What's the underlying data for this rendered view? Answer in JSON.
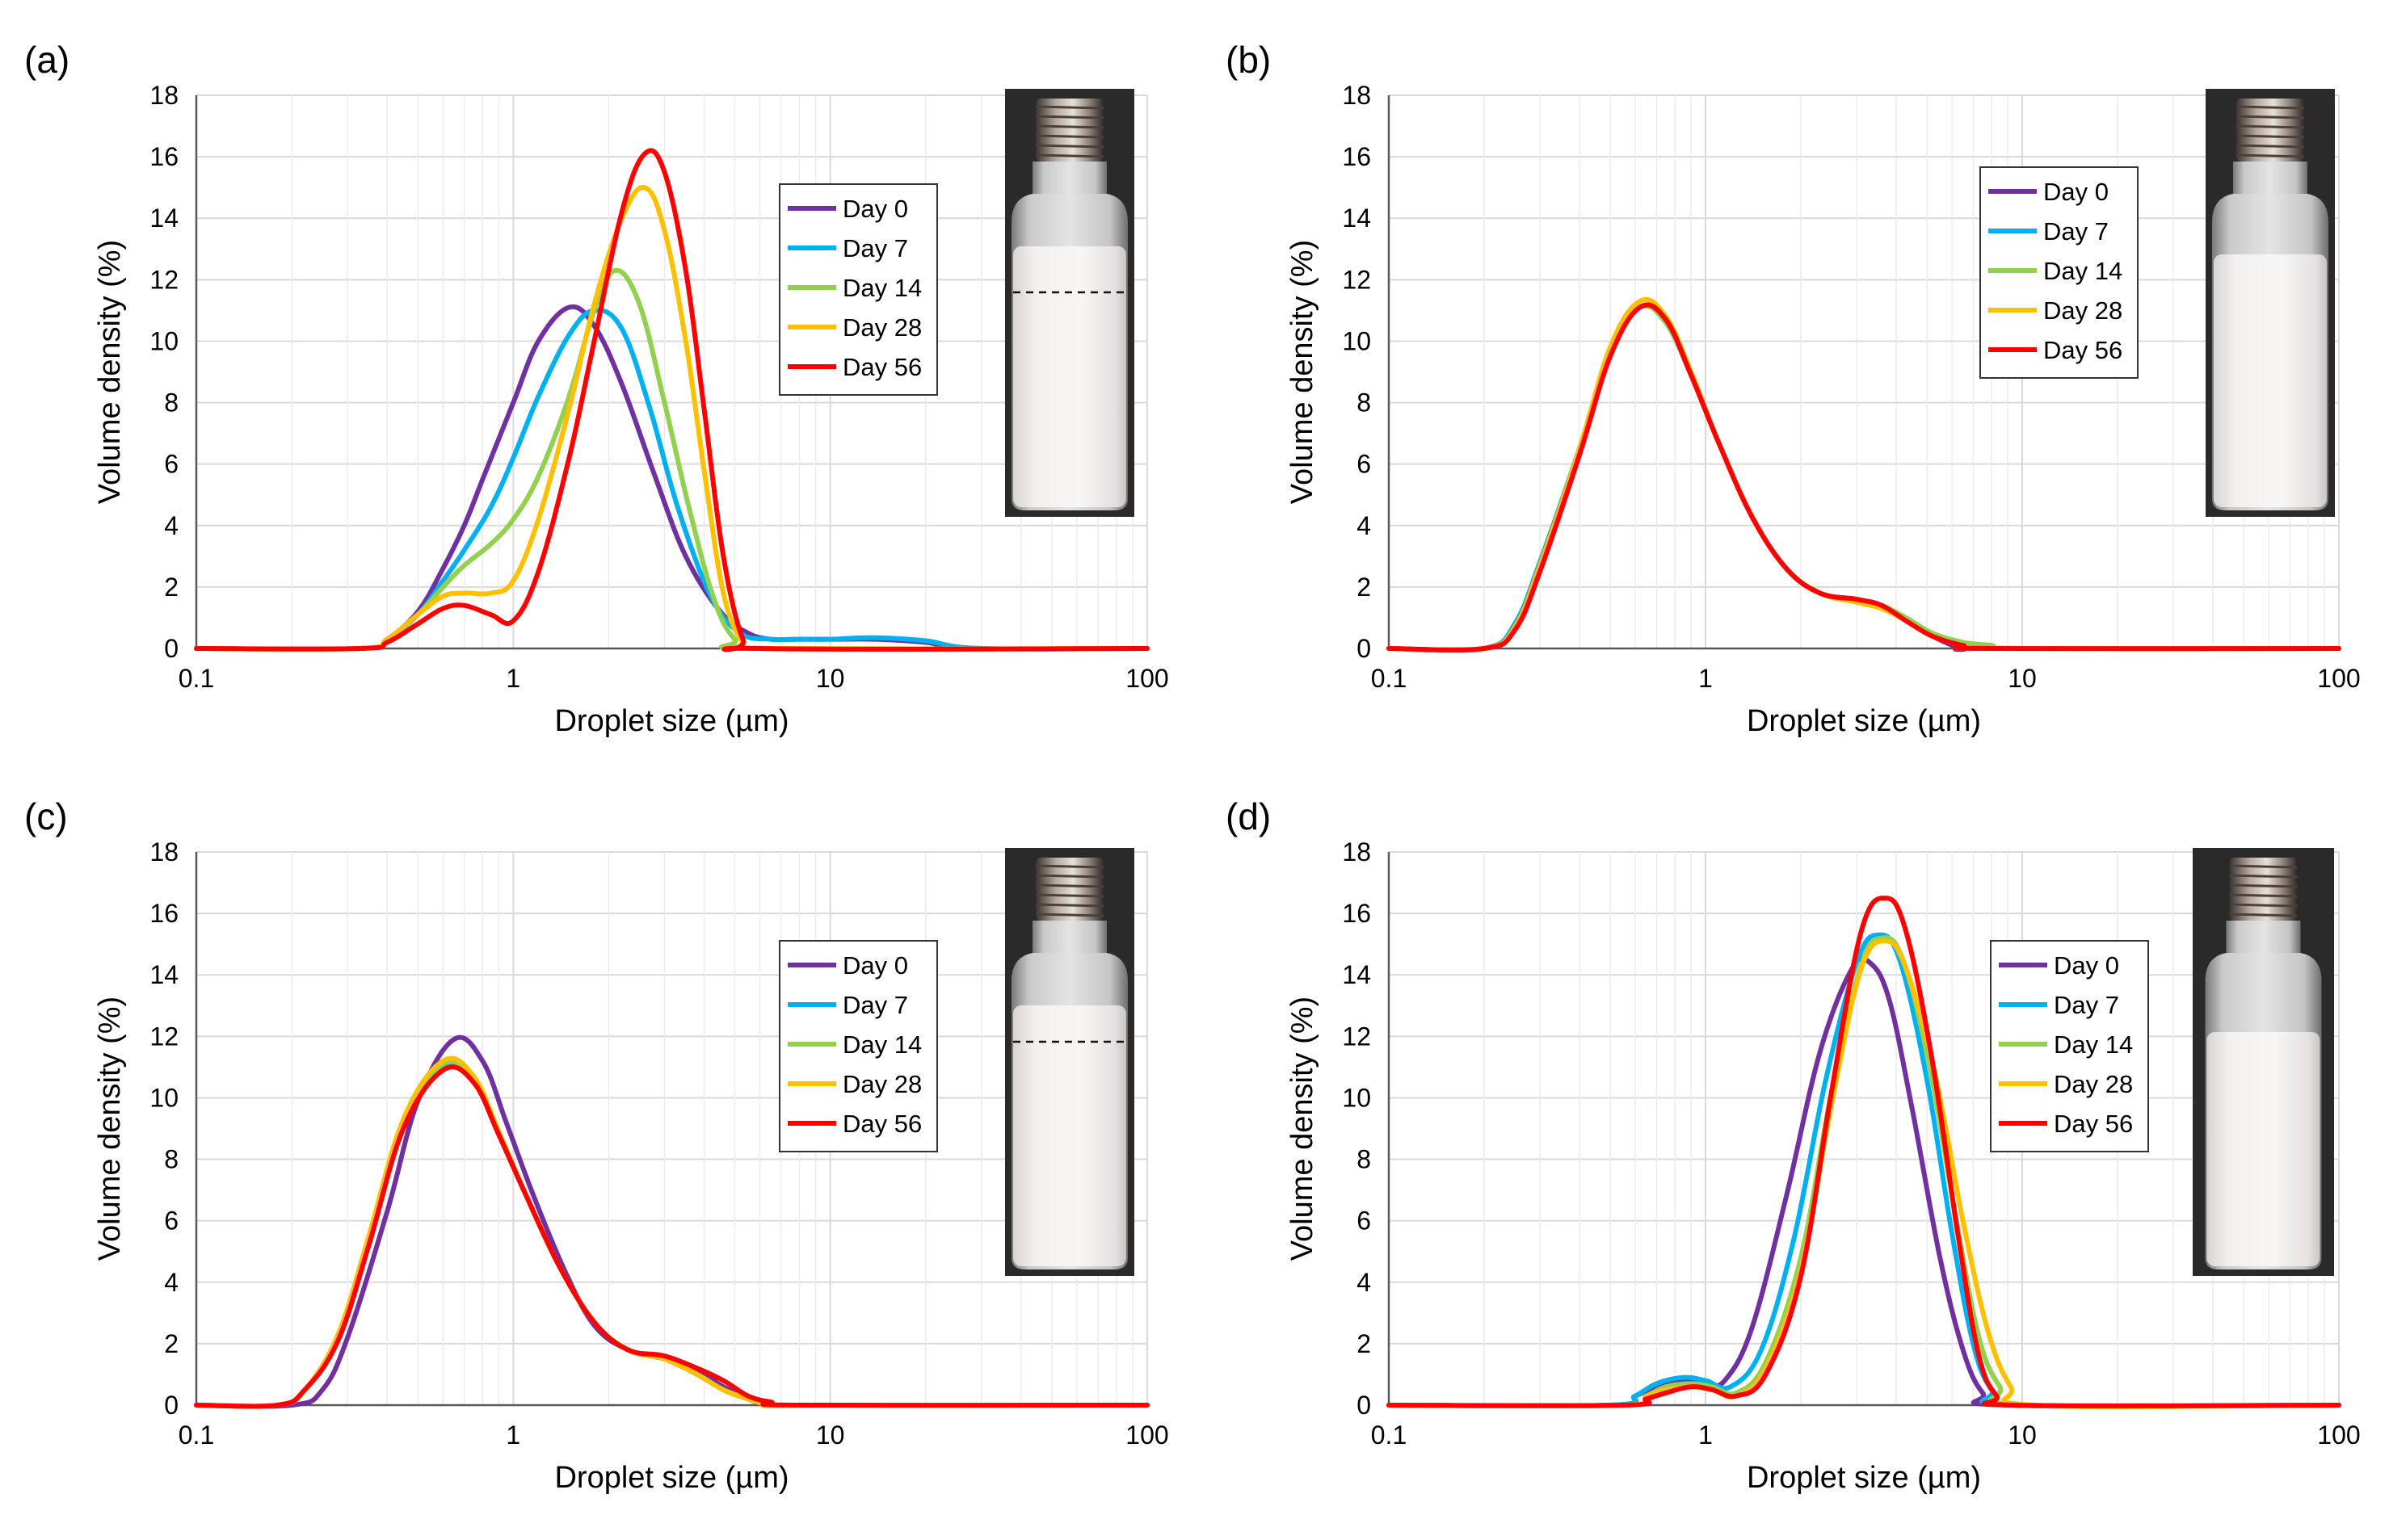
{
  "figure": {
    "x_axis_label": "Droplet size (µm)",
    "y_axis_label": "Volume density (%)",
    "legend": [
      "Day 0",
      "Day 7",
      "Day 14",
      "Day 28",
      "Day 56"
    ],
    "colors": {
      "Day 0": "#7030A0",
      "Day 7": "#00B0F0",
      "Day 14": "#92D050",
      "Day 28": "#FFC000",
      "Day 56": "#FF0000",
      "grid": "#d9d9d9"
    }
  },
  "chart_data": [
    {
      "panel": "(a)",
      "type": "line",
      "xscale": "log",
      "xlim": [
        0.1,
        100
      ],
      "ylim": [
        0,
        18
      ],
      "xticks": [
        "0.1",
        "1",
        "10",
        "100"
      ],
      "yticks": [
        "0",
        "2",
        "4",
        "6",
        "8",
        "10",
        "12",
        "14",
        "16",
        "18"
      ],
      "xlabel": "Droplet size (µm)",
      "ylabel": "Volume density (%)",
      "legend_position": "upper-center-right",
      "inset": {
        "type": "vial photo",
        "dashed_line": true
      },
      "series": [
        {
          "name": "Day 0",
          "x": [
            0.1,
            0.33,
            0.4,
            0.5,
            0.6,
            0.7,
            0.8,
            1.0,
            1.2,
            1.5,
            1.8,
            2.2,
            2.8,
            3.5,
            4.5,
            5.5,
            6.5,
            8,
            10,
            14,
            20,
            28,
            100
          ],
          "y": [
            0,
            0,
            0.3,
            1.2,
            2.6,
            4.0,
            5.5,
            8.0,
            10.0,
            11.1,
            10.5,
            8.6,
            5.6,
            3.0,
            1.2,
            0.5,
            0.3,
            0.3,
            0.3,
            0.3,
            0.2,
            0,
            0
          ]
        },
        {
          "name": "Day 7",
          "x": [
            0.1,
            0.33,
            0.4,
            0.5,
            0.6,
            0.7,
            0.85,
            1.0,
            1.2,
            1.5,
            1.8,
            2.2,
            2.7,
            3.3,
            4.2,
            5.2,
            6.5,
            8,
            10,
            14,
            20,
            30,
            100
          ],
          "y": [
            0,
            0,
            0.3,
            1.1,
            2.2,
            3.2,
            4.6,
            6.2,
            8.2,
            10.2,
            11.0,
            10.4,
            7.8,
            4.6,
            1.7,
            0.5,
            0.3,
            0.3,
            0.3,
            0.35,
            0.25,
            0,
            0
          ]
        },
        {
          "name": "Day 14",
          "x": [
            0.1,
            0.33,
            0.4,
            0.5,
            0.6,
            0.7,
            0.85,
            1.0,
            1.2,
            1.5,
            1.8,
            2.1,
            2.5,
            3.0,
            3.6,
            4.3,
            5.0,
            6.0,
            100
          ],
          "y": [
            0,
            0,
            0.3,
            1.1,
            2.0,
            2.7,
            3.4,
            4.2,
            5.6,
            8.2,
            11.0,
            12.3,
            11.2,
            8.0,
            4.5,
            1.6,
            0.3,
            0,
            0
          ]
        },
        {
          "name": "Day 28",
          "x": [
            0.1,
            0.33,
            0.4,
            0.5,
            0.6,
            0.7,
            0.85,
            1.0,
            1.2,
            1.5,
            1.8,
            2.2,
            2.6,
            3.0,
            3.5,
            4.0,
            4.6,
            5.3,
            6.0,
            100
          ],
          "y": [
            0,
            0,
            0.3,
            1.1,
            1.7,
            1.8,
            1.8,
            2.2,
            4.2,
            7.8,
            11.2,
            14.0,
            15.0,
            13.6,
            10.0,
            5.8,
            1.8,
            0.2,
            0,
            0
          ]
        },
        {
          "name": "Day 56",
          "x": [
            0.1,
            0.33,
            0.4,
            0.5,
            0.6,
            0.7,
            0.85,
            1.0,
            1.2,
            1.5,
            1.8,
            2.2,
            2.6,
            3.0,
            3.5,
            4.0,
            4.6,
            5.3,
            6.0,
            100
          ],
          "y": [
            0,
            0,
            0.2,
            0.8,
            1.3,
            1.4,
            1.1,
            0.9,
            2.5,
            6.2,
            10.0,
            14.2,
            16.1,
            15.5,
            12.3,
            7.8,
            3.0,
            0.3,
            0,
            0
          ]
        }
      ]
    },
    {
      "panel": "(b)",
      "type": "line",
      "xscale": "log",
      "xlim": [
        0.1,
        100
      ],
      "ylim": [
        0,
        18
      ],
      "xticks": [
        "0.1",
        "1",
        "10",
        "100"
      ],
      "yticks": [
        "0",
        "2",
        "4",
        "6",
        "8",
        "10",
        "12",
        "14",
        "16",
        "18"
      ],
      "xlabel": "Droplet size (µm)",
      "ylabel": "Volume density (%)",
      "legend_position": "upper-center-right",
      "inset": {
        "type": "vial photo",
        "dashed_line": false
      },
      "series": [
        {
          "name": "Day 0",
          "x": [
            0.1,
            0.2,
            0.25,
            0.3,
            0.4,
            0.5,
            0.62,
            0.75,
            0.9,
            1.1,
            1.4,
            1.8,
            2.3,
            3.0,
            3.6,
            4.3,
            5.2,
            6.5,
            8,
            100
          ],
          "y": [
            0,
            0,
            0.8,
            2.8,
            6.5,
            9.6,
            11.1,
            10.6,
            8.9,
            6.7,
            4.3,
            2.6,
            1.8,
            1.6,
            1.4,
            0.9,
            0.4,
            0,
            0,
            0
          ]
        },
        {
          "name": "Day 7",
          "x": [
            0.1,
            0.2,
            0.25,
            0.3,
            0.4,
            0.5,
            0.62,
            0.75,
            0.9,
            1.1,
            1.4,
            1.8,
            2.3,
            3.0,
            3.6,
            4.3,
            5.2,
            6.5,
            8,
            100
          ],
          "y": [
            0,
            0,
            0.8,
            2.8,
            6.5,
            9.6,
            11.1,
            10.6,
            8.9,
            6.7,
            4.3,
            2.6,
            1.8,
            1.6,
            1.4,
            0.9,
            0.4,
            0.1,
            0,
            0
          ]
        },
        {
          "name": "Day 14",
          "x": [
            0.1,
            0.2,
            0.25,
            0.3,
            0.4,
            0.5,
            0.62,
            0.75,
            0.9,
            1.1,
            1.4,
            1.8,
            2.3,
            3.0,
            3.6,
            4.3,
            5.2,
            6.5,
            8,
            10,
            100
          ],
          "y": [
            0,
            0,
            0.7,
            2.7,
            6.4,
            9.6,
            11.1,
            10.6,
            8.9,
            6.7,
            4.3,
            2.6,
            1.8,
            1.6,
            1.4,
            1.0,
            0.5,
            0.2,
            0.1,
            0,
            0
          ]
        },
        {
          "name": "Day 28",
          "x": [
            0.1,
            0.2,
            0.25,
            0.3,
            0.4,
            0.5,
            0.62,
            0.75,
            0.9,
            1.1,
            1.4,
            1.8,
            2.3,
            3.0,
            3.6,
            4.3,
            5.2,
            6.5,
            8,
            100
          ],
          "y": [
            0,
            0,
            0.7,
            2.7,
            6.5,
            9.8,
            11.3,
            10.8,
            9.0,
            6.7,
            4.3,
            2.6,
            1.8,
            1.5,
            1.3,
            0.9,
            0.4,
            0.1,
            0,
            0
          ]
        },
        {
          "name": "Day 56",
          "x": [
            0.1,
            0.2,
            0.25,
            0.3,
            0.4,
            0.5,
            0.62,
            0.75,
            0.9,
            1.1,
            1.4,
            1.8,
            2.3,
            3.0,
            3.6,
            4.3,
            5.2,
            6.5,
            8,
            100
          ],
          "y": [
            0,
            0,
            0.6,
            2.5,
            6.3,
            9.5,
            11.1,
            10.7,
            8.9,
            6.7,
            4.3,
            2.6,
            1.8,
            1.6,
            1.4,
            0.9,
            0.4,
            0.1,
            0,
            0
          ]
        }
      ]
    },
    {
      "panel": "(c)",
      "type": "line",
      "xscale": "log",
      "xlim": [
        0.1,
        100
      ],
      "ylim": [
        0,
        18
      ],
      "xticks": [
        "0.1",
        "1",
        "10",
        "100"
      ],
      "yticks": [
        "0",
        "2",
        "4",
        "6",
        "8",
        "10",
        "12",
        "14",
        "16",
        "18"
      ],
      "xlabel": "Droplet size (µm)",
      "ylabel": "Volume density (%)",
      "legend_position": "upper-center-right",
      "inset": {
        "type": "vial photo",
        "dashed_line": true
      },
      "series": [
        {
          "name": "Day 0",
          "x": [
            0.1,
            0.2,
            0.25,
            0.3,
            0.4,
            0.5,
            0.65,
            0.8,
            0.95,
            1.15,
            1.45,
            1.8,
            2.3,
            3.0,
            3.8,
            4.6,
            5.5,
            6.5,
            8,
            100
          ],
          "y": [
            0,
            0,
            0.5,
            2.2,
            6.3,
            9.9,
            11.9,
            11.2,
            9.2,
            6.9,
            4.4,
            2.6,
            1.8,
            1.5,
            1.1,
            0.6,
            0.2,
            0,
            0,
            0
          ]
        },
        {
          "name": "Day 7",
          "x": [
            0.1,
            0.18,
            0.22,
            0.28,
            0.35,
            0.45,
            0.6,
            0.75,
            0.9,
            1.1,
            1.4,
            1.8,
            2.3,
            3.0,
            3.8,
            4.6,
            5.5,
            6.5,
            8,
            100
          ],
          "y": [
            0,
            0,
            0.5,
            2.2,
            5.4,
            9.2,
            11.0,
            10.5,
            8.8,
            6.8,
            4.5,
            2.7,
            1.8,
            1.5,
            1.0,
            0.5,
            0.2,
            0,
            0,
            0
          ]
        },
        {
          "name": "Day 14",
          "x": [
            0.1,
            0.18,
            0.22,
            0.28,
            0.35,
            0.45,
            0.6,
            0.75,
            0.9,
            1.1,
            1.4,
            1.8,
            2.3,
            3.0,
            3.8,
            4.6,
            5.5,
            6.5,
            8,
            100
          ],
          "y": [
            0,
            0,
            0.5,
            2.2,
            5.4,
            9.2,
            11.1,
            10.6,
            8.8,
            6.8,
            4.5,
            2.7,
            1.8,
            1.5,
            1.0,
            0.5,
            0.2,
            0,
            0,
            0
          ]
        },
        {
          "name": "Day 28",
          "x": [
            0.1,
            0.18,
            0.22,
            0.28,
            0.35,
            0.45,
            0.6,
            0.75,
            0.9,
            1.1,
            1.4,
            1.8,
            2.3,
            3.0,
            3.8,
            4.6,
            5.5,
            6.5,
            8,
            100
          ],
          "y": [
            0,
            0,
            0.5,
            2.3,
            5.5,
            9.3,
            11.2,
            10.7,
            8.9,
            6.8,
            4.5,
            2.7,
            1.8,
            1.5,
            1.0,
            0.5,
            0.2,
            0,
            0,
            0
          ]
        },
        {
          "name": "Day 56",
          "x": [
            0.1,
            0.18,
            0.22,
            0.28,
            0.35,
            0.45,
            0.6,
            0.75,
            0.9,
            1.1,
            1.4,
            1.8,
            2.3,
            3.0,
            3.8,
            4.6,
            5.5,
            6.5,
            8,
            100
          ],
          "y": [
            0,
            0,
            0.5,
            2.1,
            5.2,
            9.0,
            10.9,
            10.5,
            8.8,
            6.8,
            4.5,
            2.7,
            1.8,
            1.6,
            1.2,
            0.8,
            0.3,
            0.1,
            0,
            0
          ]
        }
      ]
    },
    {
      "panel": "(d)",
      "type": "line",
      "xscale": "log",
      "xlim": [
        0.1,
        100
      ],
      "ylim": [
        0,
        18
      ],
      "xticks": [
        "0.1",
        "1",
        "10",
        "100"
      ],
      "yticks": [
        "0",
        "2",
        "4",
        "6",
        "8",
        "10",
        "12",
        "14",
        "16",
        "18"
      ],
      "xlabel": "Droplet size (µm)",
      "ylabel": "Volume density (%)",
      "legend_position": "upper-center-right",
      "inset": {
        "type": "vial photo",
        "dashed_line": false
      },
      "series": [
        {
          "name": "Day 0",
          "x": [
            0.1,
            0.5,
            0.6,
            0.7,
            0.85,
            1.0,
            1.15,
            1.4,
            1.8,
            2.3,
            2.9,
            3.3,
            3.8,
            4.5,
            5.5,
            6.5,
            7.5,
            9,
            100
          ],
          "y": [
            0,
            0,
            0.3,
            0.6,
            0.8,
            0.7,
            0.8,
            2.5,
            6.8,
            11.5,
            14.2,
            14.4,
            13.2,
            9.6,
            4.8,
            1.8,
            0.4,
            0,
            0
          ]
        },
        {
          "name": "Day 7",
          "x": [
            0.1,
            0.5,
            0.6,
            0.7,
            0.85,
            1.0,
            1.2,
            1.5,
            1.9,
            2.4,
            3.0,
            3.5,
            4.1,
            5.0,
            6.0,
            7.0,
            8.0,
            9.5,
            100
          ],
          "y": [
            0,
            0,
            0.3,
            0.7,
            0.9,
            0.8,
            0.6,
            1.8,
            5.4,
            10.6,
            14.4,
            15.3,
            14.5,
            10.6,
            5.6,
            2.0,
            0.5,
            0,
            0
          ]
        },
        {
          "name": "Day 14",
          "x": [
            0.1,
            0.55,
            0.65,
            0.75,
            0.9,
            1.05,
            1.25,
            1.55,
            2.0,
            2.5,
            3.1,
            3.6,
            4.2,
            5.1,
            6.2,
            7.3,
            8.5,
            10,
            100
          ],
          "y": [
            0,
            0,
            0.3,
            0.6,
            0.7,
            0.6,
            0.4,
            1.4,
            4.8,
            10.2,
            14.3,
            15.2,
            14.5,
            11.0,
            6.0,
            2.2,
            0.6,
            0,
            0
          ]
        },
        {
          "name": "Day 28",
          "x": [
            0.1,
            0.55,
            0.65,
            0.75,
            0.9,
            1.05,
            1.25,
            1.55,
            2.0,
            2.5,
            3.1,
            3.7,
            4.3,
            5.3,
            6.5,
            7.8,
            9.2,
            11,
            100
          ],
          "y": [
            0,
            0,
            0.3,
            0.5,
            0.6,
            0.5,
            0.3,
            1.2,
            4.4,
            9.8,
            14.2,
            15.1,
            14.2,
            10.8,
            6.0,
            2.4,
            0.6,
            0,
            0
          ]
        },
        {
          "name": "Day 56",
          "x": [
            0.1,
            0.55,
            0.65,
            0.75,
            0.9,
            1.05,
            1.25,
            1.55,
            2.0,
            2.5,
            3.1,
            3.7,
            4.3,
            5.2,
            6.3,
            7.3,
            8.3,
            9.5,
            100
          ],
          "y": [
            0,
            0,
            0.2,
            0.4,
            0.6,
            0.5,
            0.3,
            1.0,
            4.2,
            10.2,
            15.4,
            16.5,
            15.4,
            11.2,
            5.4,
            1.6,
            0.3,
            0,
            0
          ]
        }
      ]
    }
  ]
}
